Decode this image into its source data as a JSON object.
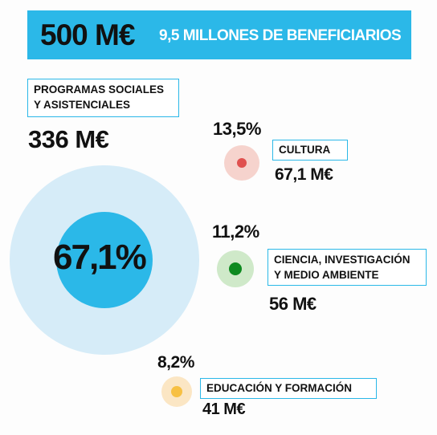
{
  "header": {
    "total": "500 M€",
    "subtitle": "9,5 MILLONES DE BENEFICIARIOS"
  },
  "colors": {
    "accent": "#2bb8e8"
  },
  "chart_data": {
    "type": "bubble",
    "unit": "M€",
    "total": 500,
    "items": [
      {
        "label": "PROGRAMAS SOCIALES Y ASISTENCIALES",
        "label_line1": "PROGRAMAS SOCIALES",
        "label_line2": "Y ASISTENCIALES",
        "value": 336,
        "value_text": "336 M€",
        "percent": 67.1,
        "percent_text": "67,1%",
        "inner_color": "#2bb8e8",
        "outer_color": "#d6ecf8"
      },
      {
        "label": "CULTURA",
        "value": 67.1,
        "value_text": "67,1 M€",
        "percent": 13.5,
        "percent_text": "13,5%",
        "inner_color": "#e0514f",
        "outer_color": "#f6d3cd"
      },
      {
        "label": "CIENCIA, INVESTIGACIÓN Y MEDIO AMBIENTE",
        "label_line1": "CIENCIA, INVESTIGACIÓN",
        "label_line2": "Y MEDIO AMBIENTE",
        "value": 56,
        "value_text": "56 M€",
        "percent": 11.2,
        "percent_text": "11,2%",
        "inner_color": "#0d8a1f",
        "outer_color": "#cfe9c9"
      },
      {
        "label": "EDUCACIÓN Y FORMACIÓN",
        "value": 41,
        "value_text": "41 M€",
        "percent": 8.2,
        "percent_text": "8,2%",
        "inner_color": "#f7c043",
        "outer_color": "#fbe6c4"
      }
    ]
  }
}
